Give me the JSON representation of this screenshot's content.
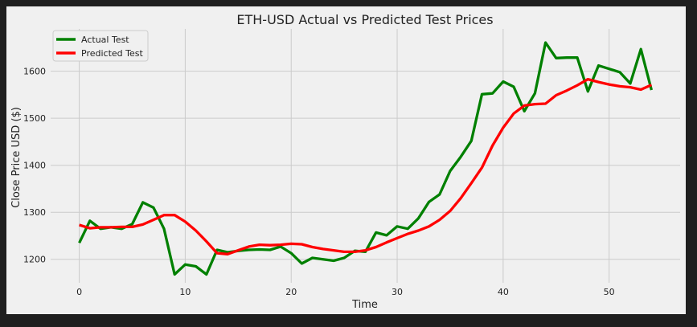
{
  "chart_data": {
    "type": "line",
    "title": "ETH-USD Actual vs Predicted Test Prices",
    "xlabel": "Time",
    "ylabel": "Close Price USD ($)",
    "xlim": [
      -2.7,
      56.7
    ],
    "ylim": [
      1150,
      1690
    ],
    "xticks": [
      0,
      10,
      20,
      30,
      40,
      50
    ],
    "yticks": [
      1200,
      1300,
      1400,
      1500,
      1600
    ],
    "grid": true,
    "legend_position": "top-left",
    "x": [
      0,
      1,
      2,
      3,
      4,
      5,
      6,
      7,
      8,
      9,
      10,
      11,
      12,
      13,
      14,
      15,
      16,
      17,
      18,
      19,
      20,
      21,
      22,
      23,
      24,
      25,
      26,
      27,
      28,
      29,
      30,
      31,
      32,
      33,
      34,
      35,
      36,
      37,
      38,
      39,
      40,
      41,
      42,
      43,
      44,
      45,
      46,
      47,
      48,
      49,
      50,
      51,
      52,
      53,
      54
    ],
    "series": [
      {
        "name": "Actual Test",
        "color": "#008000",
        "values": [
          1235,
          1282,
          1265,
          1268,
          1265,
          1275,
          1321,
          1310,
          1265,
          1168,
          1189,
          1185,
          1168,
          1220,
          1215,
          1218,
          1220,
          1221,
          1220,
          1227,
          1213,
          1191,
          1203,
          1200,
          1197,
          1203,
          1218,
          1216,
          1257,
          1251,
          1270,
          1265,
          1287,
          1322,
          1338,
          1388,
          1418,
          1452,
          1551,
          1553,
          1578,
          1567,
          1515,
          1553,
          1661,
          1628,
          1629,
          1629,
          1557,
          1612,
          1605,
          1598,
          1574,
          1647,
          1560
        ]
      },
      {
        "name": "Predicted Test",
        "color": "#ff0000",
        "values": [
          1273,
          1266,
          1268,
          1268,
          1269,
          1269,
          1274,
          1284,
          1294,
          1294,
          1280,
          1261,
          1238,
          1213,
          1211,
          1219,
          1227,
          1231,
          1230,
          1231,
          1233,
          1232,
          1226,
          1222,
          1219,
          1216,
          1216,
          1219,
          1226,
          1236,
          1245,
          1254,
          1261,
          1270,
          1284,
          1303,
          1330,
          1362,
          1395,
          1442,
          1480,
          1510,
          1527,
          1530,
          1531,
          1549,
          1559,
          1570,
          1583,
          1577,
          1572,
          1568,
          1566,
          1561,
          1571
        ]
      }
    ]
  }
}
